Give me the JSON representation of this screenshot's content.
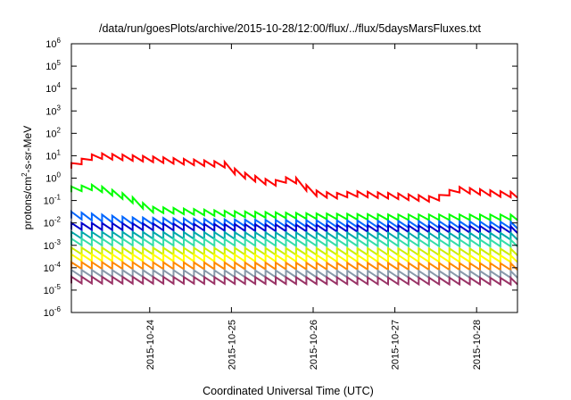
{
  "chart_data": {
    "type": "line",
    "title": "/data/run/goesPlots/archive/2015-10-28/12:00/flux/../flux/5daysMarsFluxes.txt",
    "xlabel": "Coordinated Universal Time (UTC)",
    "ylabel": {
      "base": "protons/cm",
      "sup": "2",
      "rest": "-s-sr-MeV"
    },
    "y_scale": "log",
    "ylim_exponent": [
      -6,
      6
    ],
    "yticks": [
      {
        "base": "10",
        "exp": "-6",
        "value": -6
      },
      {
        "base": "10",
        "exp": "-5",
        "value": -5
      },
      {
        "base": "10",
        "exp": "-4",
        "value": -4
      },
      {
        "base": "10",
        "exp": "-3",
        "value": -3
      },
      {
        "base": "10",
        "exp": "-2",
        "value": -2
      },
      {
        "base": "10",
        "exp": "-1",
        "value": -1
      },
      {
        "base": "10",
        "exp": "0",
        "value": 0
      },
      {
        "base": "10",
        "exp": "1",
        "value": 1
      },
      {
        "base": "10",
        "exp": "2",
        "value": 2
      },
      {
        "base": "10",
        "exp": "3",
        "value": 3
      },
      {
        "base": "10",
        "exp": "4",
        "value": 4
      },
      {
        "base": "10",
        "exp": "5",
        "value": 5
      },
      {
        "base": "10",
        "exp": "6",
        "value": 6
      }
    ],
    "xlim": [
      "2015-10-23 01:00",
      "2015-10-28 12:00"
    ],
    "xticks": [
      {
        "label": "2015-10-24",
        "date": "2015-10-24 00:00"
      },
      {
        "label": "2015-10-25",
        "date": "2015-10-25 00:00"
      },
      {
        "label": "2015-10-26",
        "date": "2015-10-26 00:00"
      },
      {
        "label": "2015-10-27",
        "date": "2015-10-27 00:00"
      },
      {
        "label": "2015-10-28",
        "date": "2015-10-28 00:00"
      }
    ],
    "grid": false,
    "sawtooth_period_hours": 3,
    "series": [
      {
        "color": "#ff0000",
        "amplitude_decades": 0.25,
        "points": [
          [
            "2015-10-23 01:00",
            0.55
          ],
          [
            "2015-10-23 08:00",
            1.0
          ],
          [
            "2015-10-24 00:00",
            0.85
          ],
          [
            "2015-10-24 22:00",
            0.6
          ],
          [
            "2015-10-25 02:00",
            0.2
          ],
          [
            "2015-10-25 12:00",
            -0.25
          ],
          [
            "2015-10-25 18:00",
            0.0
          ],
          [
            "2015-10-26 00:00",
            -0.65
          ],
          [
            "2015-10-26 06:00",
            -0.8
          ],
          [
            "2015-10-26 12:00",
            -0.7
          ],
          [
            "2015-10-27 00:00",
            -0.8
          ],
          [
            "2015-10-27 12:00",
            -0.95
          ],
          [
            "2015-10-27 18:00",
            -0.5
          ],
          [
            "2015-10-28 06:00",
            -0.7
          ],
          [
            "2015-10-28 12:00",
            -0.75
          ]
        ]
      },
      {
        "color": "#00ff00",
        "amplitude_decades": 0.25,
        "points": [
          [
            "2015-10-23 01:00",
            -0.5
          ],
          [
            "2015-10-23 08:00",
            -0.4
          ],
          [
            "2015-10-23 18:00",
            -0.9
          ],
          [
            "2015-10-24 00:00",
            -1.4
          ],
          [
            "2015-10-25 00:00",
            -1.6
          ],
          [
            "2015-10-26 00:00",
            -1.7
          ],
          [
            "2015-10-27 00:00",
            -1.75
          ],
          [
            "2015-10-28 12:00",
            -1.75
          ]
        ]
      },
      {
        "color": "#0066ff",
        "amplitude_decades": 0.3,
        "points": [
          [
            "2015-10-23 01:00",
            -1.65
          ],
          [
            "2015-10-23 18:00",
            -1.9
          ],
          [
            "2015-10-25 00:00",
            -2.0
          ],
          [
            "2015-10-28 12:00",
            -2.1
          ]
        ]
      },
      {
        "color": "#0000cc",
        "amplitude_decades": 0.3,
        "points": [
          [
            "2015-10-23 01:00",
            -2.15
          ],
          [
            "2015-10-28 12:00",
            -2.3
          ]
        ]
      },
      {
        "color": "#00aaaa",
        "amplitude_decades": 0.3,
        "points": [
          [
            "2015-10-23 01:00",
            -2.55
          ],
          [
            "2015-10-28 12:00",
            -2.6
          ]
        ]
      },
      {
        "color": "#33ddaa",
        "amplitude_decades": 0.3,
        "points": [
          [
            "2015-10-23 01:00",
            -2.85
          ],
          [
            "2015-10-28 12:00",
            -2.9
          ]
        ]
      },
      {
        "color": "#ccee00",
        "amplitude_decades": 0.3,
        "points": [
          [
            "2015-10-23 01:00",
            -3.25
          ],
          [
            "2015-10-28 12:00",
            -3.3
          ]
        ]
      },
      {
        "color": "#ffff00",
        "amplitude_decades": 0.3,
        "points": [
          [
            "2015-10-23 01:00",
            -3.55
          ],
          [
            "2015-10-28 12:00",
            -3.6
          ]
        ]
      },
      {
        "color": "#ff8800",
        "amplitude_decades": 0.3,
        "points": [
          [
            "2015-10-23 01:00",
            -3.9
          ],
          [
            "2015-10-28 12:00",
            -3.95
          ]
        ]
      },
      {
        "color": "#8899aa",
        "amplitude_decades": 0.3,
        "points": [
          [
            "2015-10-23 01:00",
            -4.25
          ],
          [
            "2015-10-28 12:00",
            -4.3
          ]
        ]
      },
      {
        "color": "#993366",
        "amplitude_decades": 0.3,
        "points": [
          [
            "2015-10-23 01:00",
            -4.55
          ],
          [
            "2015-10-28 12:00",
            -4.6
          ]
        ]
      }
    ]
  }
}
